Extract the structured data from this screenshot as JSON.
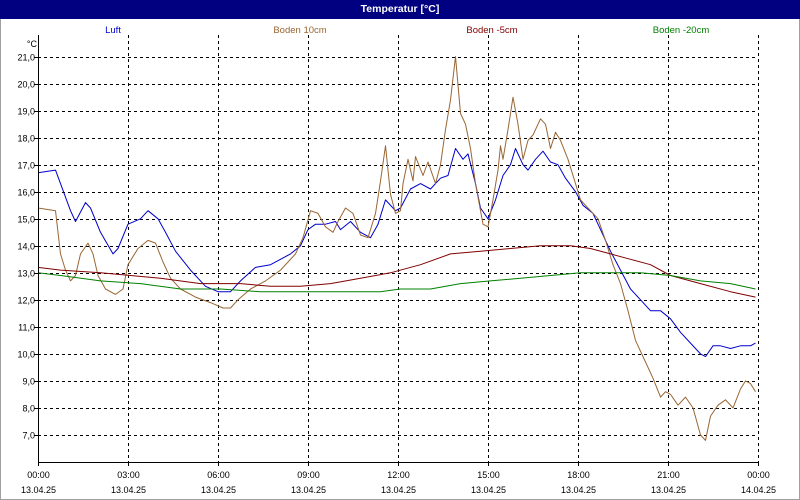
{
  "chart_data": {
    "type": "line",
    "title": "Temperatur [°C]",
    "ylabel": "°C",
    "xlabel": "",
    "ylim": [
      6.0,
      21.8
    ],
    "xlim": [
      "13.04.25 00:00",
      "14.04.25 00:00"
    ],
    "grid": true,
    "legend": "top",
    "yticks": [
      {
        "value": 7,
        "label": "7,0"
      },
      {
        "value": 8,
        "label": "8,0"
      },
      {
        "value": 9,
        "label": "9,0"
      },
      {
        "value": 10,
        "label": "10,0"
      },
      {
        "value": 11,
        "label": "11,0"
      },
      {
        "value": 12,
        "label": "12,0"
      },
      {
        "value": 13,
        "label": "13,0"
      },
      {
        "value": 14,
        "label": "14,0"
      },
      {
        "value": 15,
        "label": "15,0"
      },
      {
        "value": 16,
        "label": "16,0"
      },
      {
        "value": 17,
        "label": "17,0"
      },
      {
        "value": 18,
        "label": "18,0"
      },
      {
        "value": 19,
        "label": "19,0"
      },
      {
        "value": 20,
        "label": "20,0"
      },
      {
        "value": 21,
        "label": "21,0"
      }
    ],
    "xticks": [
      {
        "time": "00:00",
        "date": "13.04.25"
      },
      {
        "time": "03:00",
        "date": "13.04.25"
      },
      {
        "time": "06:00",
        "date": "13.04.25"
      },
      {
        "time": "09:00",
        "date": "13.04.25"
      },
      {
        "time": "12:00",
        "date": "13.04.25"
      },
      {
        "time": "15:00",
        "date": "13.04.25"
      },
      {
        "time": "18:00",
        "date": "13.04.25"
      },
      {
        "time": "21:00",
        "date": "13.04.25"
      },
      {
        "time": "00:00",
        "date": "14.04.25"
      }
    ],
    "series": [
      {
        "name": "Luft",
        "color": "#0000cc",
        "points": [
          [
            "13.04.25 00:00",
            16.7
          ],
          [
            "13.04.25 00:35",
            16.8
          ],
          [
            "13.04.25 00:45",
            16.3
          ],
          [
            "13.04.25 01:05",
            15.3
          ],
          [
            "13.04.25 01:15",
            14.9
          ],
          [
            "13.04.25 01:35",
            15.6
          ],
          [
            "13.04.25 01:45",
            15.4
          ],
          [
            "13.04.25 02:05",
            14.5
          ],
          [
            "13.04.25 02:30",
            13.7
          ],
          [
            "13.04.25 02:40",
            13.9
          ],
          [
            "13.04.25 03:00",
            14.8
          ],
          [
            "13.04.25 03:25",
            15.0
          ],
          [
            "13.04.25 03:40",
            15.3
          ],
          [
            "13.04.25 04:00",
            15.0
          ],
          [
            "13.04.25 04:15",
            14.5
          ],
          [
            "13.04.25 04:35",
            13.8
          ],
          [
            "13.04.25 05:05",
            13.1
          ],
          [
            "13.04.25 05:35",
            12.5
          ],
          [
            "13.04.25 06:00",
            12.3
          ],
          [
            "13.04.25 06:25",
            12.3
          ],
          [
            "13.04.25 06:45",
            12.7
          ],
          [
            "13.04.25 07:15",
            13.2
          ],
          [
            "13.04.25 07:45",
            13.3
          ],
          [
            "13.04.25 08:25",
            13.7
          ],
          [
            "13.04.25 08:45",
            14.0
          ],
          [
            "13.04.25 09:00",
            14.6
          ],
          [
            "13.04.25 09:15",
            14.8
          ],
          [
            "13.04.25 09:35",
            14.8
          ],
          [
            "13.04.25 09:55",
            14.9
          ],
          [
            "13.04.25 10:05",
            14.6
          ],
          [
            "13.04.25 10:25",
            14.9
          ],
          [
            "13.04.25 10:45",
            14.5
          ],
          [
            "13.04.25 11:05",
            14.3
          ],
          [
            "13.04.25 11:20",
            14.8
          ],
          [
            "13.04.25 11:35",
            15.7
          ],
          [
            "13.04.25 11:55",
            15.3
          ],
          [
            "13.04.25 12:05",
            15.4
          ],
          [
            "13.04.25 12:25",
            16.1
          ],
          [
            "13.04.25 12:45",
            16.3
          ],
          [
            "13.04.25 13:05",
            16.1
          ],
          [
            "13.04.25 13:25",
            16.5
          ],
          [
            "13.04.25 13:40",
            16.6
          ],
          [
            "13.04.25 13:55",
            17.6
          ],
          [
            "13.04.25 14:10",
            17.2
          ],
          [
            "13.04.25 14:20",
            17.4
          ],
          [
            "13.04.25 14:35",
            16.3
          ],
          [
            "13.04.25 14:45",
            15.4
          ],
          [
            "13.04.25 15:00",
            15.0
          ],
          [
            "13.04.25 15:15",
            15.7
          ],
          [
            "13.04.25 15:30",
            16.6
          ],
          [
            "13.04.25 15:45",
            17.0
          ],
          [
            "13.04.25 15:55",
            17.6
          ],
          [
            "13.04.25 16:10",
            17.0
          ],
          [
            "13.04.25 16:20",
            16.8
          ],
          [
            "13.04.25 16:35",
            17.2
          ],
          [
            "13.04.25 16:50",
            17.5
          ],
          [
            "13.04.25 17:05",
            17.1
          ],
          [
            "13.04.25 17:20",
            17.0
          ],
          [
            "13.04.25 17:35",
            16.5
          ],
          [
            "13.04.25 17:55",
            16.0
          ],
          [
            "13.04.25 18:10",
            15.5
          ],
          [
            "13.04.25 18:30",
            15.2
          ],
          [
            "13.04.25 18:45",
            14.6
          ],
          [
            "13.04.25 19:05",
            13.8
          ],
          [
            "13.04.25 19:25",
            13.1
          ],
          [
            "13.04.25 19:45",
            12.4
          ],
          [
            "13.04.25 20:05",
            12.0
          ],
          [
            "13.04.25 20:25",
            11.6
          ],
          [
            "13.04.25 20:45",
            11.6
          ],
          [
            "13.04.25 21:05",
            11.3
          ],
          [
            "13.04.25 21:25",
            10.8
          ],
          [
            "13.04.25 21:45",
            10.4
          ],
          [
            "13.04.25 22:05",
            10.0
          ],
          [
            "13.04.25 22:15",
            9.9
          ],
          [
            "13.04.25 22:30",
            10.3
          ],
          [
            "13.04.25 22:45",
            10.3
          ],
          [
            "13.04.25 23:05",
            10.2
          ],
          [
            "13.04.25 23:25",
            10.3
          ],
          [
            "13.04.25 23:45",
            10.3
          ],
          [
            "13.04.25 23:55",
            10.4
          ]
        ]
      },
      {
        "name": "Boden 10cm",
        "color": "#996633",
        "points": [
          [
            "13.04.25 00:00",
            15.4
          ],
          [
            "13.04.25 00:35",
            15.3
          ],
          [
            "13.04.25 00:45",
            13.7
          ],
          [
            "13.04.25 00:55",
            13.1
          ],
          [
            "13.04.25 01:05",
            12.7
          ],
          [
            "13.04.25 01:15",
            12.9
          ],
          [
            "13.04.25 01:25",
            13.7
          ],
          [
            "13.04.25 01:40",
            14.1
          ],
          [
            "13.04.25 01:50",
            13.7
          ],
          [
            "13.04.25 02:00",
            12.9
          ],
          [
            "13.04.25 02:15",
            12.4
          ],
          [
            "13.04.25 02:35",
            12.2
          ],
          [
            "13.04.25 02:50",
            12.4
          ],
          [
            "13.04.25 03:00",
            13.3
          ],
          [
            "13.04.25 03:20",
            13.9
          ],
          [
            "13.04.25 03:40",
            14.2
          ],
          [
            "13.04.25 03:55",
            14.1
          ],
          [
            "13.04.25 04:10",
            13.4
          ],
          [
            "13.04.25 04:25",
            12.8
          ],
          [
            "13.04.25 04:45",
            12.4
          ],
          [
            "13.04.25 05:15",
            12.1
          ],
          [
            "13.04.25 05:45",
            11.9
          ],
          [
            "13.04.25 06:10",
            11.7
          ],
          [
            "13.04.25 06:25",
            11.7
          ],
          [
            "13.04.25 06:40",
            12.0
          ],
          [
            "13.04.25 07:05",
            12.4
          ],
          [
            "13.04.25 07:35",
            12.7
          ],
          [
            "13.04.25 08:05",
            13.1
          ],
          [
            "13.04.25 08:35",
            13.7
          ],
          [
            "13.04.25 08:50",
            14.3
          ],
          [
            "13.04.25 09:05",
            15.3
          ],
          [
            "13.04.25 09:20",
            15.2
          ],
          [
            "13.04.25 09:35",
            14.7
          ],
          [
            "13.04.25 09:50",
            14.5
          ],
          [
            "13.04.25 10:00",
            14.9
          ],
          [
            "13.04.25 10:15",
            15.4
          ],
          [
            "13.04.25 10:30",
            15.2
          ],
          [
            "13.04.25 10:45",
            14.4
          ],
          [
            "13.04.25 11:00",
            14.3
          ],
          [
            "13.04.25 11:15",
            15.2
          ],
          [
            "13.04.25 11:25",
            16.4
          ],
          [
            "13.04.25 11:35",
            17.7
          ],
          [
            "13.04.25 11:45",
            15.9
          ],
          [
            "13.04.25 11:55",
            15.2
          ],
          [
            "13.04.25 12:05",
            15.3
          ],
          [
            "13.04.25 12:10",
            16.3
          ],
          [
            "13.04.25 12:20",
            17.2
          ],
          [
            "13.04.25 12:30",
            16.4
          ],
          [
            "13.04.25 12:35",
            17.3
          ],
          [
            "13.04.25 12:50",
            16.6
          ],
          [
            "13.04.25 13:00",
            17.1
          ],
          [
            "13.04.25 13:15",
            16.3
          ],
          [
            "13.04.25 13:25",
            17.0
          ],
          [
            "13.04.25 13:35",
            18.3
          ],
          [
            "13.04.25 13:45",
            19.4
          ],
          [
            "13.04.25 13:55",
            21.0
          ],
          [
            "13.04.25 14:05",
            18.9
          ],
          [
            "13.04.25 14:15",
            18.5
          ],
          [
            "13.04.25 14:25",
            17.6
          ],
          [
            "13.04.25 14:35",
            16.3
          ],
          [
            "13.04.25 14:50",
            14.8
          ],
          [
            "13.04.25 15:00",
            14.7
          ],
          [
            "13.04.25 15:10",
            15.7
          ],
          [
            "13.04.25 15:20",
            16.8
          ],
          [
            "13.04.25 15:25",
            17.7
          ],
          [
            "13.04.25 15:30",
            17.2
          ],
          [
            "13.04.25 15:40",
            18.3
          ],
          [
            "13.04.25 15:50",
            19.5
          ],
          [
            "13.04.25 16:00",
            18.5
          ],
          [
            "13.04.25 16:10",
            17.2
          ],
          [
            "13.04.25 16:20",
            17.9
          ],
          [
            "13.04.25 16:30",
            18.1
          ],
          [
            "13.04.25 16:45",
            18.7
          ],
          [
            "13.04.25 16:55",
            18.5
          ],
          [
            "13.04.25 17:05",
            17.6
          ],
          [
            "13.04.25 17:15",
            18.2
          ],
          [
            "13.04.25 17:25",
            17.9
          ],
          [
            "13.04.25 17:40",
            17.2
          ],
          [
            "13.04.25 17:55",
            16.3
          ],
          [
            "13.04.25 18:05",
            15.7
          ],
          [
            "13.04.25 18:25",
            15.3
          ],
          [
            "13.04.25 18:40",
            15.0
          ],
          [
            "13.04.25 18:55",
            14.2
          ],
          [
            "13.04.25 19:10",
            13.3
          ],
          [
            "13.04.25 19:25",
            12.6
          ],
          [
            "13.04.25 19:40",
            11.6
          ],
          [
            "13.04.25 19:55",
            10.5
          ],
          [
            "13.04.25 20:15",
            9.7
          ],
          [
            "13.04.25 20:30",
            9.1
          ],
          [
            "13.04.25 20:45",
            8.4
          ],
          [
            "13.04.25 20:55",
            8.6
          ],
          [
            "13.04.25 21:05",
            8.5
          ],
          [
            "13.04.25 21:20",
            8.1
          ],
          [
            "13.04.25 21:35",
            8.4
          ],
          [
            "13.04.25 21:50",
            8.0
          ],
          [
            "13.04.25 22:05",
            7.0
          ],
          [
            "13.04.25 22:15",
            6.8
          ],
          [
            "13.04.25 22:25",
            7.7
          ],
          [
            "13.04.25 22:40",
            8.1
          ],
          [
            "13.04.25 22:55",
            8.3
          ],
          [
            "13.04.25 23:10",
            8.0
          ],
          [
            "13.04.25 23:25",
            8.7
          ],
          [
            "13.04.25 23:35",
            9.0
          ],
          [
            "13.04.25 23:45",
            8.9
          ],
          [
            "13.04.25 23:55",
            8.6
          ]
        ]
      },
      {
        "name": "Boden -5cm",
        "color": "#800000",
        "points": [
          [
            "13.04.25 00:00",
            13.2
          ],
          [
            "13.04.25 00:45",
            13.1
          ],
          [
            "13.04.25 02:05",
            13.0
          ],
          [
            "13.04.25 03:05",
            12.9
          ],
          [
            "13.04.25 04:05",
            12.8
          ],
          [
            "13.04.25 05:25",
            12.6
          ],
          [
            "13.04.25 06:45",
            12.6
          ],
          [
            "13.04.25 07:45",
            12.5
          ],
          [
            "13.04.25 08:45",
            12.5
          ],
          [
            "13.04.25 09:45",
            12.6
          ],
          [
            "13.04.25 10:45",
            12.8
          ],
          [
            "13.04.25 11:45",
            13.0
          ],
          [
            "13.04.25 12:45",
            13.3
          ],
          [
            "13.04.25 13:45",
            13.7
          ],
          [
            "13.04.25 14:45",
            13.8
          ],
          [
            "13.04.25 15:45",
            13.9
          ],
          [
            "13.04.25 16:45",
            14.0
          ],
          [
            "13.04.25 17:45",
            14.0
          ],
          [
            "13.04.25 18:25",
            13.9
          ],
          [
            "13.04.25 19:05",
            13.7
          ],
          [
            "13.04.25 19:45",
            13.5
          ],
          [
            "13.04.25 20:25",
            13.3
          ],
          [
            "13.04.25 21:05",
            12.9
          ],
          [
            "13.04.25 22:05",
            12.6
          ],
          [
            "13.04.25 23:05",
            12.3
          ],
          [
            "13.04.25 23:55",
            12.1
          ]
        ]
      },
      {
        "name": "Boden -20cm",
        "color": "#008000",
        "points": [
          [
            "13.04.25 00:00",
            13.0
          ],
          [
            "13.04.25 00:45",
            12.9
          ],
          [
            "13.04.25 02:05",
            12.7
          ],
          [
            "13.04.25 03:25",
            12.6
          ],
          [
            "13.04.25 04:45",
            12.4
          ],
          [
            "13.04.25 06:05",
            12.4
          ],
          [
            "13.04.25 07:25",
            12.3
          ],
          [
            "13.04.25 08:45",
            12.3
          ],
          [
            "13.04.25 10:05",
            12.3
          ],
          [
            "13.04.25 11:25",
            12.3
          ],
          [
            "13.04.25 12:05",
            12.4
          ],
          [
            "13.04.25 13:05",
            12.4
          ],
          [
            "13.04.25 14:05",
            12.6
          ],
          [
            "13.04.25 15:05",
            12.7
          ],
          [
            "13.04.25 16:05",
            12.8
          ],
          [
            "13.04.25 17:05",
            12.9
          ],
          [
            "13.04.25 18:05",
            13.0
          ],
          [
            "13.04.25 19:05",
            13.0
          ],
          [
            "13.04.25 20:05",
            13.0
          ],
          [
            "13.04.25 21:05",
            12.9
          ],
          [
            "13.04.25 22:05",
            12.7
          ],
          [
            "13.04.25 23:05",
            12.6
          ],
          [
            "13.04.25 23:55",
            12.4
          ]
        ]
      }
    ]
  }
}
